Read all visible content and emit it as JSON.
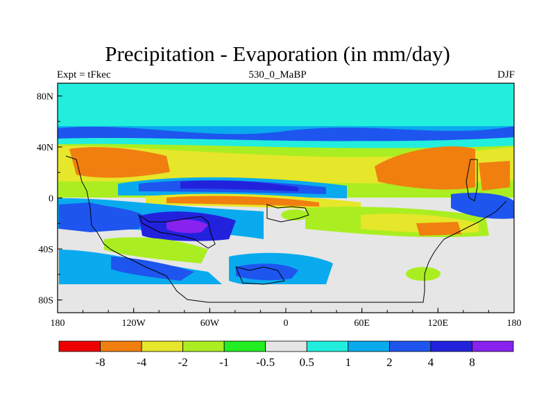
{
  "title": "Precipitation - Evaporation (in mm/day)",
  "left_label": "Expt = tFkec",
  "center_label": "530_0_MaBP",
  "right_label": "DJF",
  "x_ticks": [
    "180",
    "120W",
    "60W",
    "0",
    "60E",
    "120E",
    "180"
  ],
  "y_ticks": [
    "80N",
    "40N",
    "0",
    "40S",
    "80S"
  ],
  "colorbar": {
    "colors": [
      "#ee0000",
      "#f07f10",
      "#e6e62a",
      "#aaee22",
      "#22ee22",
      "#e6e6e6",
      "#22eedd",
      "#09aaee",
      "#1e55ee",
      "#2222dd",
      "#8822ee"
    ],
    "labels": [
      "-8",
      "-4",
      "-2",
      "-1",
      "-0.5",
      "0.5",
      "1",
      "2",
      "4",
      "8"
    ]
  },
  "chart_data": {
    "type": "heatmap",
    "title": "Precipitation - Evaporation (in mm/day)",
    "subtitle_left": "Expt = tFkec",
    "subtitle_center": "530_0_MaBP",
    "subtitle_right": "DJF",
    "projection": "cylindrical equidistant",
    "lon_range": [
      -180,
      180
    ],
    "lat_range": [
      -90,
      90
    ],
    "contour_levels": [
      -8,
      -4,
      -2,
      -1,
      -0.5,
      0.5,
      1,
      2,
      4,
      8
    ],
    "features": [
      {
        "region": "high northern latitudes (60N-90N)",
        "value_class": "0.5 to 1"
      },
      {
        "region": "northern mid-latitude storm track (~45N)",
        "value_class": "2 to 4"
      },
      {
        "region": "subtropical north (~20N)",
        "value_class": "-8 to -4"
      },
      {
        "region": "equatorial ITCZ (~5N)",
        "value_class": "4 to 8"
      },
      {
        "region": "equatorial band south (~5S)",
        "value_class": "-8 to -4"
      },
      {
        "region": "southern subtropics (~20S-30S)",
        "value_class": "4 to >8"
      },
      {
        "region": "southern continental interior",
        "value_class": "-0.5 to 0.5"
      },
      {
        "region": "southern high latitudes (~80S)",
        "value_class": "-0.5 to 0.5"
      }
    ]
  }
}
